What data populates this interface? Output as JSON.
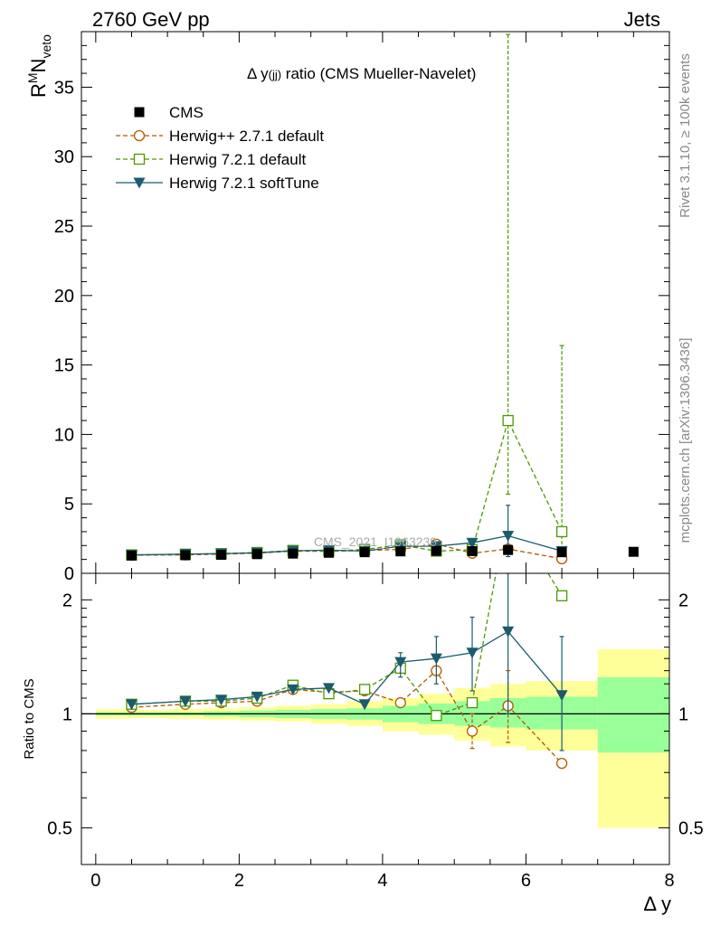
{
  "header": {
    "left": "2760 GeV pp",
    "right": "Jets"
  },
  "side_labels": {
    "rivet": "Rivet 3.1.10, ≥ 100k events",
    "mcplots": "mcplots.cern.ch [arXiv:1306.3436]"
  },
  "chart_data": [
    {
      "type": "line",
      "panel": "main",
      "title": "Δ y(jj) ratio (CMS Mueller-Navelet)",
      "title_parts": {
        "prefix": "Δ y",
        "sub": "(jj)",
        "suffix": " ratio (CMS Mueller-Navelet)"
      },
      "ylabel": "R^M N_veto",
      "ylabel_parts": {
        "R": "R",
        "sup": "M",
        "N": "N",
        "sub": "veto"
      },
      "xlabel": "",
      "xlim": [
        -0.2,
        8.0
      ],
      "ylim": [
        0,
        39
      ],
      "yticks": [
        "0",
        "5",
        "10",
        "15",
        "20",
        "25",
        "30",
        "35"
      ],
      "watermark": "CMS_2021_I1963239",
      "series": [
        {
          "name": "CMS",
          "color": "#000000",
          "marker": "square-filled",
          "line": "none",
          "x": [
            0.5,
            1.25,
            1.75,
            2.25,
            2.75,
            3.25,
            3.75,
            4.25,
            4.75,
            5.25,
            5.75,
            6.5,
            7.5
          ],
          "y": [
            1.28,
            1.3,
            1.33,
            1.38,
            1.42,
            1.48,
            1.52,
            1.58,
            1.62,
            1.6,
            1.68,
            1.52,
            1.55
          ]
        },
        {
          "name": "Herwig++ 2.7.1 default",
          "color": "#b35900",
          "marker": "circle-open",
          "line": "dashed",
          "x": [
            0.5,
            1.25,
            1.75,
            2.25,
            2.75,
            3.25,
            3.75,
            4.25,
            4.75,
            5.25,
            5.75,
            6.5
          ],
          "y": [
            1.3,
            1.33,
            1.38,
            1.45,
            1.6,
            1.58,
            1.65,
            1.72,
            2.1,
            1.45,
            1.75,
            1.05
          ]
        },
        {
          "name": "Herwig 7.2.1 default",
          "color": "#4d9900",
          "marker": "square-open",
          "line": "dashed",
          "x": [
            0.5,
            1.25,
            1.75,
            2.25,
            2.75,
            3.25,
            3.75,
            4.25,
            4.75,
            5.25,
            5.75,
            6.5
          ],
          "y": [
            1.33,
            1.38,
            1.42,
            1.5,
            1.65,
            1.6,
            1.72,
            2.05,
            1.6,
            1.7,
            11.0,
            3.0
          ],
          "err_hi": [
            0,
            0,
            0,
            0,
            0,
            0,
            0,
            0,
            0,
            0,
            38.8,
            16.4
          ],
          "err_lo": [
            0,
            0,
            0,
            0,
            0,
            0,
            0,
            0,
            0,
            0,
            5.7,
            1.5
          ]
        },
        {
          "name": "Herwig 7.2.1 softTune",
          "color": "#1a5c6e",
          "marker": "triangle-down-filled",
          "line": "solid",
          "x": [
            0.5,
            1.25,
            1.75,
            2.25,
            2.75,
            3.25,
            3.75,
            4.25,
            4.75,
            5.25,
            5.75,
            6.5
          ],
          "y": [
            1.32,
            1.38,
            1.42,
            1.48,
            1.62,
            1.67,
            1.6,
            1.95,
            1.95,
            2.2,
            2.7,
            1.6
          ],
          "err_hi": [
            0,
            0,
            0,
            0,
            0,
            0,
            0,
            0,
            0,
            0,
            4.9,
            0
          ],
          "err_lo": [
            0,
            0,
            0,
            0,
            0,
            0,
            0,
            0,
            0,
            0,
            1.2,
            0
          ]
        }
      ]
    },
    {
      "type": "line",
      "panel": "ratio",
      "ylabel": "Ratio to CMS",
      "xlabel": "Δ y",
      "xlim": [
        -0.2,
        8.0
      ],
      "ylim": [
        0.4,
        2.35
      ],
      "yscale": "log",
      "xticks": [
        "0",
        "2",
        "4",
        "6",
        "8"
      ],
      "yticks_left": [
        "0.5",
        "1",
        "2"
      ],
      "yticks_right": [
        "0.5",
        "1",
        "2"
      ],
      "reference_line": 1,
      "bands": {
        "edges": [
          0.0,
          0.5,
          1.0,
          1.5,
          2.0,
          2.5,
          3.0,
          3.5,
          4.0,
          4.5,
          5.0,
          5.5,
          6.0,
          7.0,
          8.0
        ],
        "green_lo": [
          0.99,
          0.99,
          0.99,
          0.985,
          0.98,
          0.975,
          0.97,
          0.965,
          0.95,
          0.94,
          0.93,
          0.92,
          0.91,
          0.79
        ],
        "green_hi": [
          1.01,
          1.01,
          1.01,
          1.015,
          1.02,
          1.025,
          1.03,
          1.035,
          1.05,
          1.065,
          1.08,
          1.1,
          1.11,
          1.25
        ],
        "yellow_lo": [
          0.97,
          0.975,
          0.97,
          0.965,
          0.96,
          0.955,
          0.94,
          0.93,
          0.9,
          0.88,
          0.85,
          0.82,
          0.8,
          0.5
        ],
        "yellow_hi": [
          1.03,
          1.025,
          1.03,
          1.035,
          1.04,
          1.05,
          1.06,
          1.08,
          1.1,
          1.13,
          1.17,
          1.2,
          1.22,
          1.48
        ],
        "green_color": "#99ff99",
        "yellow_color": "#ffff99"
      },
      "series": [
        {
          "name": "Herwig++ 2.7.1 default",
          "color": "#b35900",
          "marker": "circle-open",
          "line": "dashed",
          "x": [
            0.5,
            1.25,
            1.75,
            2.25,
            2.75,
            3.25,
            3.75,
            4.25,
            4.75,
            5.25,
            5.75,
            6.5
          ],
          "y": [
            1.04,
            1.06,
            1.07,
            1.08,
            1.16,
            1.14,
            1.15,
            1.07,
            1.3,
            0.9,
            1.05,
            0.74
          ],
          "err_hi": [
            0,
            0,
            0,
            0,
            0,
            0,
            0,
            1.45,
            1.5,
            1.0,
            1.3,
            0
          ],
          "err_lo": [
            0,
            0,
            0,
            0,
            0,
            0,
            0,
            0,
            0,
            0.81,
            0.84,
            0
          ]
        },
        {
          "name": "Herwig 7.2.1 default",
          "color": "#4d9900",
          "marker": "square-open",
          "line": "dashed",
          "x": [
            0.5,
            1.25,
            1.75,
            2.25,
            2.75,
            3.25,
            3.75,
            4.25,
            4.75,
            5.25,
            5.75,
            6.5
          ],
          "y": [
            1.06,
            1.08,
            1.08,
            1.1,
            1.19,
            1.13,
            1.16,
            1.32,
            0.99,
            1.07,
            3.5,
            2.05
          ],
          "err_hi": [
            0,
            0,
            0,
            0,
            0,
            0,
            0,
            0,
            0,
            0,
            0,
            0
          ],
          "err_lo": [
            0,
            0,
            0,
            0,
            0,
            0,
            0,
            0,
            0,
            0,
            0,
            0
          ]
        },
        {
          "name": "Herwig 7.2.1 softTune",
          "color": "#1a5c6e",
          "marker": "triangle-down-filled",
          "line": "solid",
          "x": [
            0.5,
            1.25,
            1.75,
            2.25,
            2.75,
            3.25,
            3.75,
            4.25,
            4.75,
            5.25,
            5.75,
            6.5
          ],
          "y": [
            1.06,
            1.08,
            1.09,
            1.11,
            1.16,
            1.17,
            1.06,
            1.37,
            1.4,
            1.45,
            1.65,
            1.12
          ],
          "err_hi": [
            0,
            0,
            0,
            0,
            0,
            0,
            0,
            1.45,
            1.6,
            1.8,
            2.35,
            1.6
          ],
          "err_lo": [
            0,
            0,
            0,
            0,
            0,
            0,
            0,
            1.25,
            1.2,
            1.15,
            1.0,
            0.8
          ]
        }
      ]
    }
  ]
}
